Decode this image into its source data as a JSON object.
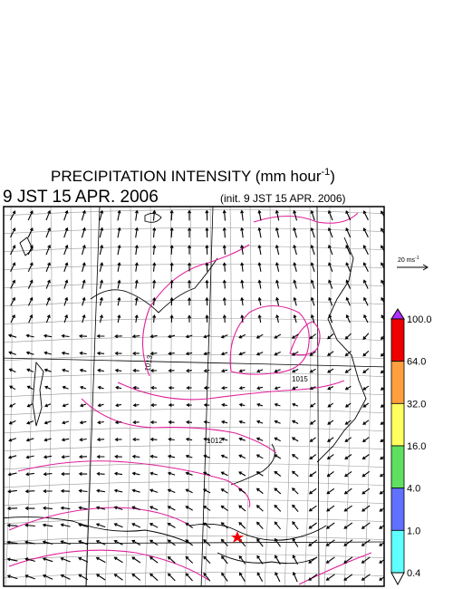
{
  "title": {
    "main": "PRECIPITATION INTENSITY (mm hour",
    "sup": "-1",
    "close": ")"
  },
  "valid_time": "9 JST 15 APR. 2006",
  "init_time": "(init. 9 JST 15 APR. 2006)",
  "scale_arrow": {
    "label": "20 ms",
    "sup": "-1"
  },
  "isobar_labels": [
    "1013",
    "1015",
    "1012"
  ],
  "colorbar": {
    "labels": [
      "100.0",
      "64.0",
      "32.0",
      "16.0",
      "4.0",
      "1.0",
      "0.4"
    ],
    "colors": [
      "#ee0000",
      "#ffa040",
      "#ffff60",
      "#60e060",
      "#6070ff",
      "#60ffff"
    ],
    "over_color": "#b030ff",
    "under_color": "#ffffff"
  }
}
